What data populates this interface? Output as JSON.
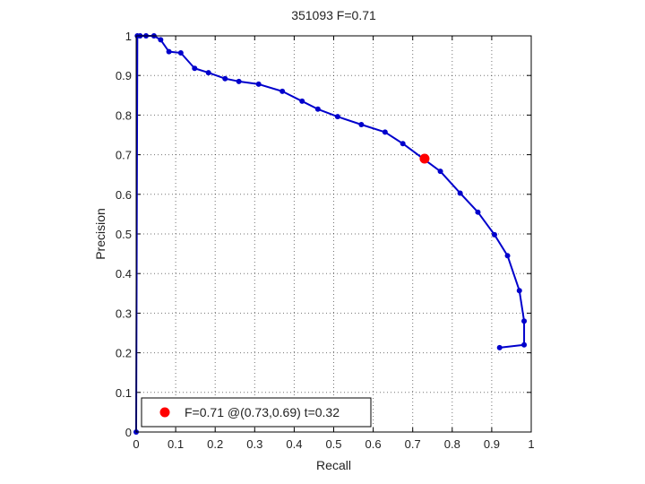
{
  "chart_data": {
    "type": "line",
    "title": "351093 F=0.71",
    "xlabel": "Recall",
    "ylabel": "Precision",
    "xlim": [
      0,
      1
    ],
    "ylim": [
      0,
      1
    ],
    "xticks": [
      0,
      0.1,
      0.2,
      0.3,
      0.4,
      0.5,
      0.6,
      0.7,
      0.8,
      0.9,
      1
    ],
    "xtick_labels": [
      "0",
      "0.1",
      "0.2",
      "0.3",
      "0.4",
      "0.5",
      "0.6",
      "0.7",
      "0.8",
      "0.9",
      "1"
    ],
    "yticks": [
      0,
      0.1,
      0.2,
      0.3,
      0.4,
      0.5,
      0.6,
      0.7,
      0.8,
      0.9,
      1
    ],
    "ytick_labels": [
      "0",
      "0.1",
      "0.2",
      "0.3",
      "0.4",
      "0.5",
      "0.6",
      "0.7",
      "0.8",
      "0.9",
      "1"
    ],
    "grid": true,
    "legend_position": "bottom-left",
    "series": [
      {
        "color": "#0000cc",
        "x": [
          0,
          0.003,
          0.01,
          0.025,
          0.045,
          0.062,
          0.083,
          0.113,
          0.148,
          0.183,
          0.225,
          0.26,
          0.31,
          0.37,
          0.42,
          0.46,
          0.51,
          0.57,
          0.63,
          0.675,
          0.77,
          0.82,
          0.865,
          0.907,
          0.94,
          0.97,
          0.982,
          0.982,
          0.92
        ],
        "y": [
          0,
          1,
          1,
          1,
          1,
          0.99,
          0.96,
          0.957,
          0.918,
          0.907,
          0.892,
          0.885,
          0.878,
          0.86,
          0.835,
          0.815,
          0.796,
          0.776,
          0.757,
          0.728,
          0.658,
          0.603,
          0.555,
          0.498,
          0.445,
          0.357,
          0.28,
          0.22,
          0.213
        ]
      }
    ],
    "best_point": {
      "x": 0.73,
      "y": 0.69,
      "color": "#ff0000",
      "label": "F=0.71 @(0.73,0.69) t=0.32"
    }
  }
}
